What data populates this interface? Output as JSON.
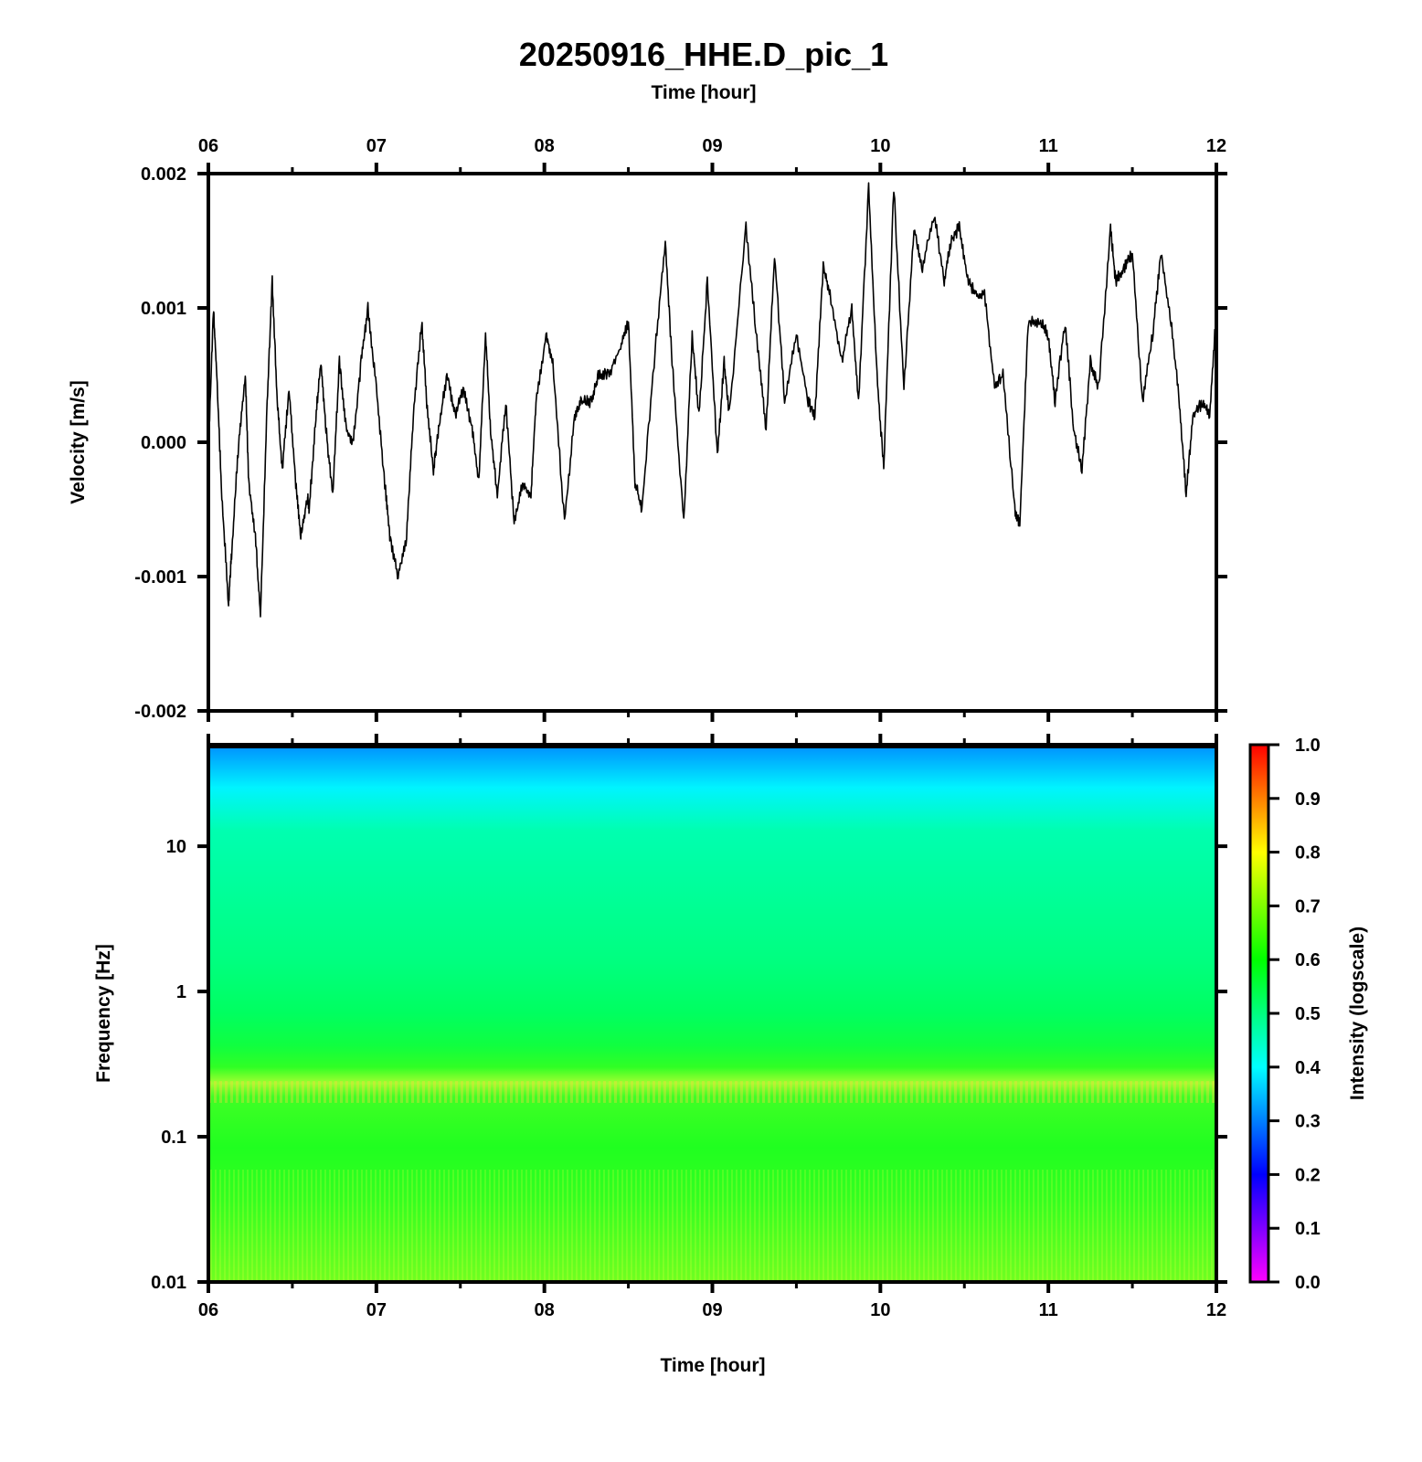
{
  "title": "20250916_HHE.D_pic_1",
  "colors": {
    "trace": "#000000",
    "frame": "#000000",
    "background": "#ffffff"
  },
  "chart_data": [
    {
      "type": "line",
      "panel": "waveform",
      "xlabel": "Time [hour]",
      "ylabel": "Velocity [m/s]",
      "xlim": [
        6,
        12
      ],
      "ylim": [
        -0.002,
        0.002
      ],
      "x_ticks": [
        "06",
        "07",
        "08",
        "09",
        "10",
        "11",
        "12"
      ],
      "y_ticks": [
        "0.002",
        "0.001",
        "0.000",
        "-0.001",
        "-0.002"
      ],
      "grid": false,
      "series": [
        {
          "x": [
            6.0,
            6.03,
            6.05,
            6.08,
            6.12,
            6.14,
            6.18,
            6.22,
            6.24,
            6.28,
            6.31,
            6.35,
            6.38,
            6.41,
            6.44,
            6.48,
            6.52,
            6.55,
            6.59,
            6.6,
            6.64,
            6.67,
            6.7,
            6.74,
            6.78,
            6.82,
            6.86,
            6.91,
            6.95,
            7.0,
            7.05,
            7.08,
            7.13,
            7.18,
            7.22,
            7.27,
            7.3,
            7.34,
            7.37,
            7.42,
            7.47,
            7.52,
            7.57,
            7.61,
            7.65,
            7.68,
            7.72,
            7.77,
            7.82,
            7.87,
            7.92,
            7.95,
            8.01,
            8.05,
            8.12,
            8.18,
            8.22,
            8.28,
            8.32,
            8.38,
            8.45,
            8.5,
            8.54,
            8.58,
            8.66,
            8.72,
            8.76,
            8.83,
            8.88,
            8.92,
            8.97,
            9.03,
            9.07,
            9.1,
            9.2,
            9.27,
            9.32,
            9.37,
            9.43,
            9.5,
            9.57,
            9.61,
            9.66,
            9.7,
            9.77,
            9.83,
            9.87,
            9.93,
            9.98,
            10.02,
            10.08,
            10.14,
            10.2,
            10.25,
            10.32,
            10.38,
            10.42,
            10.47,
            10.52,
            10.57,
            10.62,
            10.68,
            10.73,
            10.8,
            10.83,
            10.88,
            10.95,
            11.0,
            11.04,
            11.1,
            11.15,
            11.2,
            11.25,
            11.3,
            11.37,
            11.4,
            11.45,
            11.5,
            11.56,
            11.62,
            11.67,
            11.73,
            11.78,
            11.82,
            11.86,
            11.92,
            11.96,
            12.0
          ],
          "y": [
            -0.0001,
            0.001,
            0.0005,
            -0.0004,
            -0.0012,
            -0.0008,
            0.0,
            0.0005,
            -0.0003,
            -0.0007,
            -0.0013,
            0.0003,
            0.0012,
            0.0003,
            -0.0002,
            0.0004,
            -0.0003,
            -0.0007,
            -0.0004,
            -0.0005,
            0.0002,
            0.0006,
            0.0001,
            -0.0004,
            0.0006,
            0.0001,
            0.0,
            0.0006,
            0.001,
            0.0004,
            -0.0003,
            -0.0007,
            -0.001,
            -0.0007,
            0.0002,
            0.0009,
            0.0003,
            -0.0002,
            0.0001,
            0.0005,
            0.0002,
            0.0004,
            0.0001,
            -0.0003,
            0.0008,
            0.0001,
            -0.0004,
            0.0003,
            -0.0006,
            -0.0003,
            -0.0004,
            0.0003,
            0.0008,
            0.0006,
            -0.0006,
            0.0002,
            0.0003,
            0.0003,
            0.0005,
            0.0005,
            0.0007,
            0.0009,
            -0.0003,
            -0.0005,
            0.0007,
            0.0015,
            0.0006,
            -0.0006,
            0.0008,
            0.0002,
            0.0012,
            -0.0001,
            0.0006,
            0.0002,
            0.0016,
            0.0007,
            0.0001,
            0.0014,
            0.0003,
            0.0008,
            0.0003,
            0.0002,
            0.0013,
            0.0011,
            0.0006,
            0.001,
            0.0003,
            0.0019,
            0.0005,
            -0.0002,
            0.0019,
            0.0004,
            0.0016,
            0.0013,
            0.0017,
            0.0012,
            0.0015,
            0.0016,
            0.0012,
            0.0011,
            0.0011,
            0.0004,
            0.0005,
            -0.0005,
            -0.0006,
            0.0009,
            0.0009,
            0.0008,
            0.0003,
            0.0009,
            0.0001,
            -0.0002,
            0.0006,
            0.0004,
            0.0016,
            0.0012,
            0.0013,
            0.0014,
            0.0003,
            0.0008,
            0.0014,
            0.0009,
            0.0003,
            -0.0004,
            0.0002,
            0.0003,
            0.0002,
            0.001
          ]
        }
      ]
    },
    {
      "type": "heatmap",
      "panel": "spectrogram",
      "xlabel": "Time [hour]",
      "ylabel": "Frequency [Hz]",
      "xlim": [
        6,
        12
      ],
      "ylim": [
        0.01,
        50
      ],
      "yscale": "log",
      "x_ticks": [
        "06",
        "07",
        "08",
        "09",
        "10",
        "11",
        "12"
      ],
      "y_ticks": [
        "10",
        "1",
        "0.1",
        "0.01"
      ],
      "colorbar": {
        "label": "Intensity (logscale)",
        "range": [
          0.0,
          1.0
        ],
        "ticks": [
          "1.0",
          "0.9",
          "0.8",
          "0.7",
          "0.6",
          "0.5",
          "0.4",
          "0.3",
          "0.2",
          "0.1",
          "0.0"
        ],
        "colors": [
          "#ff00ff",
          "#0000ff",
          "#00ffff",
          "#00ff00",
          "#ffff00",
          "#ff0000"
        ]
      },
      "intensity_profile": [
        {
          "frequency": 50,
          "intensity": 0.33
        },
        {
          "frequency": 30,
          "intensity": 0.38
        },
        {
          "frequency": 10,
          "intensity": 0.46
        },
        {
          "frequency": 1,
          "intensity": 0.51
        },
        {
          "frequency": 0.3,
          "intensity": 0.57
        },
        {
          "frequency": 0.2,
          "intensity": 0.65
        },
        {
          "frequency": 0.1,
          "intensity": 0.59
        },
        {
          "frequency": 0.01,
          "intensity": 0.62
        }
      ]
    }
  ]
}
